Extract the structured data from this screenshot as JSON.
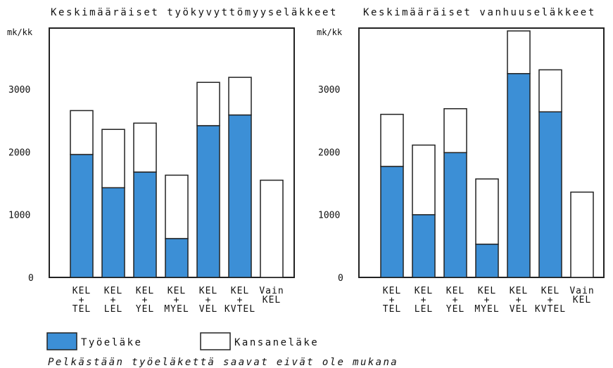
{
  "chart_data": [
    {
      "type": "bar",
      "stacked": true,
      "title": "Keskimääräiset työkyvyttömyyseläkkeet",
      "ylabel": "mk/kk",
      "ylim": [
        0,
        4000
      ],
      "yticks": [
        "0",
        "1000",
        "2000",
        "3000"
      ],
      "categories": [
        [
          "KEL",
          "+",
          "TEL"
        ],
        [
          "KEL",
          "+",
          "LEL"
        ],
        [
          "KEL",
          "+",
          "YEL"
        ],
        [
          "KEL",
          "+",
          "MYEL"
        ],
        [
          "KEL",
          "+",
          "VEL"
        ],
        [
          "KEL",
          "+",
          "KVTEL"
        ],
        [
          "Vain",
          "KEL"
        ]
      ],
      "series": [
        {
          "name": "Työeläke",
          "values": [
            1960,
            1430,
            1680,
            620,
            2420,
            2590,
            0
          ]
        },
        {
          "name": "Kansaneläke",
          "values": [
            700,
            930,
            780,
            1010,
            690,
            600,
            1550
          ]
        }
      ]
    },
    {
      "type": "bar",
      "stacked": true,
      "title": "Keskimääräiset vanhuuseläkkeet",
      "ylabel": "mk/kk",
      "ylim": [
        0,
        4000
      ],
      "yticks": [
        "0",
        "1000",
        "2000",
        "3000"
      ],
      "categories": [
        [
          "KEL",
          "+",
          "TEL"
        ],
        [
          "KEL",
          "+",
          "LEL"
        ],
        [
          "KEL",
          "+",
          "YEL"
        ],
        [
          "KEL",
          "+",
          "MYEL"
        ],
        [
          "KEL",
          "+",
          "VEL"
        ],
        [
          "KEL",
          "+",
          "KVTEL"
        ],
        [
          "Vain",
          "KEL"
        ]
      ],
      "series": [
        {
          "name": "Työeläke",
          "values": [
            1770,
            1000,
            1990,
            530,
            3250,
            2640,
            0
          ]
        },
        {
          "name": "Kansaneläke",
          "values": [
            830,
            1110,
            700,
            1040,
            680,
            670,
            1360
          ]
        }
      ]
    }
  ],
  "legend": {
    "items": [
      {
        "label": "Työeläke",
        "color": "#3c8fd6"
      },
      {
        "label": "Kansaneläke",
        "color": "#ffffff"
      }
    ]
  },
  "footnote": "Pelkästään työeläkettä saavat eivät ole mukana",
  "colors": {
    "tyoelake": "#3c8fd6",
    "kansanelake": "#ffffff",
    "stroke": "#222222"
  }
}
